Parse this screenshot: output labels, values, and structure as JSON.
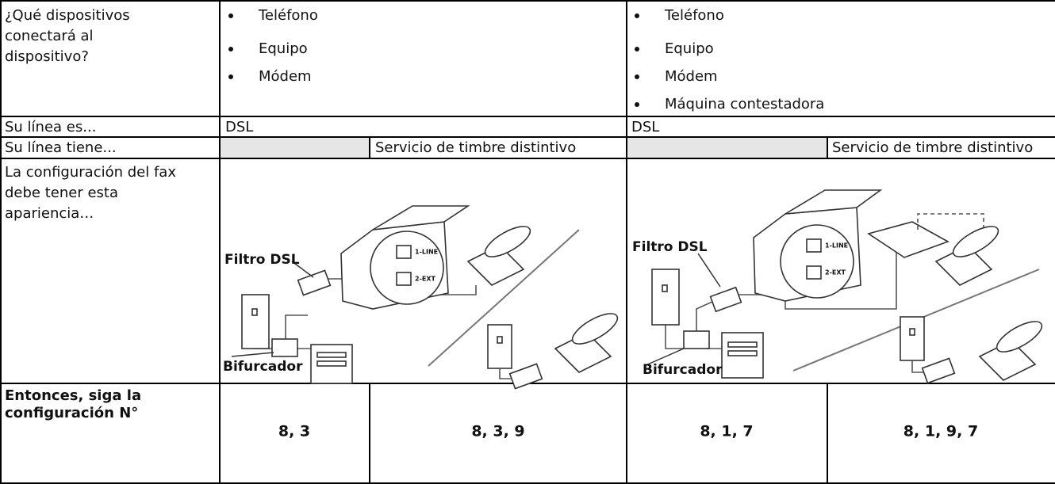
{
  "table": {
    "rows": [
      {
        "label": [
          "¿Qué dispositivos",
          "conectará al",
          "dispositivo?"
        ],
        "left": [
          "Teléfono",
          "Equipo",
          "Módem"
        ],
        "right": [
          "Teléfono",
          "Equipo",
          "Módem",
          "Máquina contestadora"
        ]
      },
      {
        "label": [
          "Su línea es..."
        ],
        "left": "DSL",
        "right": "DSL"
      },
      {
        "label": [
          "Su línea tiene..."
        ],
        "left": "Servicio de timbre distintivo",
        "right": "Servicio de timbre distintivo"
      },
      {
        "label": [
          "La configuración del fax",
          "debe tener esta",
          "apariencia…"
        ],
        "left": {
          "filter": "Filtro DSL",
          "splitter": "Bifurcador",
          "port1": "1-LINE",
          "port2": "2-EXT"
        },
        "right": {
          "filter": "Filtro DSL",
          "splitter": "Bifurcador",
          "port1": "1-LINE",
          "port2": "2-EXT"
        }
      },
      {
        "label": [
          "Entonces, siga la",
          "configuración N°"
        ],
        "values": [
          "8, 3",
          "8, 3, 9",
          "8, 1, 7",
          "8, 1, 9, 7"
        ]
      }
    ]
  }
}
